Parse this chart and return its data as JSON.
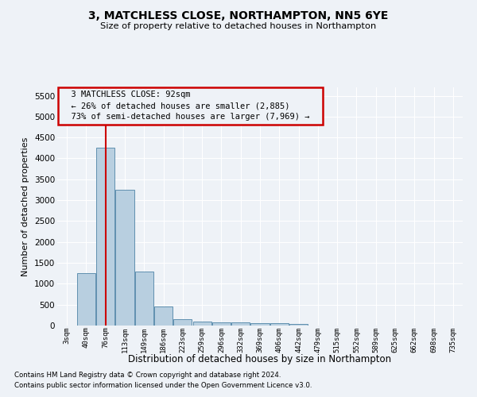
{
  "title1": "3, MATCHLESS CLOSE, NORTHAMPTON, NN5 6YE",
  "title2": "Size of property relative to detached houses in Northampton",
  "xlabel": "Distribution of detached houses by size in Northampton",
  "ylabel": "Number of detached properties",
  "footnote1": "Contains HM Land Registry data © Crown copyright and database right 2024.",
  "footnote2": "Contains public sector information licensed under the Open Government Licence v3.0.",
  "annotation_line1": "  3 MATCHLESS CLOSE: 92sqm  ",
  "annotation_line2": "  ← 26% of detached houses are smaller (2,885)  ",
  "annotation_line3": "  73% of semi-detached houses are larger (7,969) →  ",
  "property_size_bin": 1,
  "bar_color": "#b8cfe0",
  "bar_edge_color": "#6090b0",
  "marker_color": "#cc0000",
  "annotation_box_edgecolor": "#cc0000",
  "categories": [
    "3sqm",
    "40sqm",
    "76sqm",
    "113sqm",
    "149sqm",
    "186sqm",
    "223sqm",
    "259sqm",
    "296sqm",
    "332sqm",
    "369sqm",
    "406sqm",
    "442sqm",
    "479sqm",
    "515sqm",
    "552sqm",
    "589sqm",
    "625sqm",
    "662sqm",
    "698sqm",
    "735sqm"
  ],
  "values": [
    0,
    1250,
    4250,
    3250,
    1300,
    450,
    150,
    100,
    75,
    75,
    55,
    50,
    45,
    0,
    0,
    0,
    0,
    0,
    0,
    0,
    0
  ],
  "ylim": [
    0,
    5700
  ],
  "yticks": [
    0,
    500,
    1000,
    1500,
    2000,
    2500,
    3000,
    3500,
    4000,
    4500,
    5000,
    5500
  ],
  "background_color": "#eef2f7",
  "grid_color": "#ffffff",
  "n_bins": 21
}
